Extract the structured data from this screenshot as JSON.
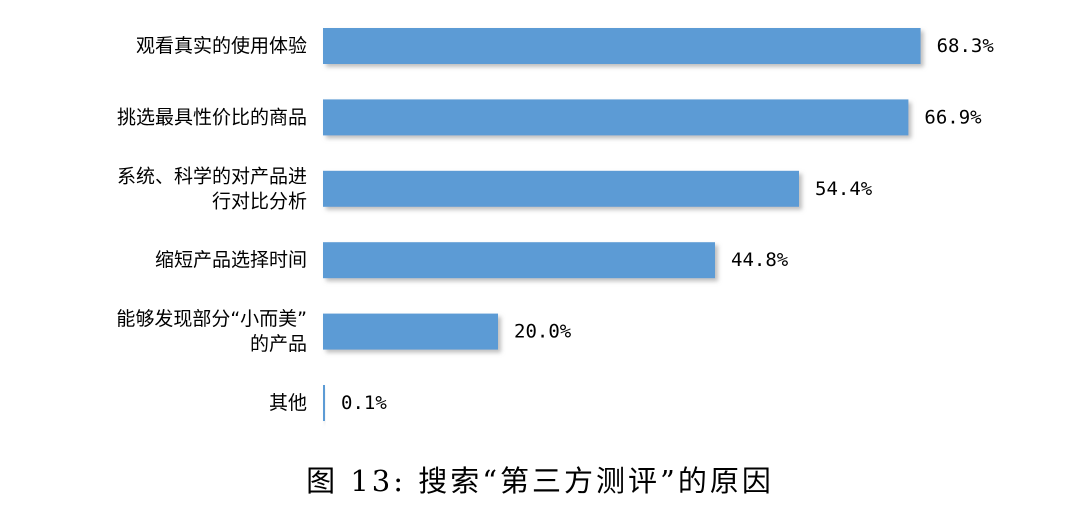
{
  "caption": "图 13:  搜索“第三方测评”的原因",
  "colors": {
    "bar": "#5b9bd5",
    "bar_shadow": "#b3b3b3",
    "text": "#000000"
  },
  "chart_data": {
    "type": "bar",
    "orientation": "horizontal",
    "categories": [
      [
        "观看真实的使用体验"
      ],
      [
        "挑选最具性价比的商品"
      ],
      [
        "系统、科学的对产品进",
        "行对比分析"
      ],
      [
        "缩短产品选择时间"
      ],
      [
        "能够发现部分“小而美”",
        "的产品"
      ],
      [
        "其他"
      ]
    ],
    "values": [
      68.3,
      66.9,
      54.4,
      44.8,
      20.0,
      0.1
    ],
    "value_labels": [
      "68.3%",
      "66.9%",
      "54.4%",
      "44.8%",
      "20.0%",
      "0.1%"
    ],
    "unit": "%",
    "xlim": [
      0,
      70
    ],
    "grid": false,
    "legend": "none"
  }
}
